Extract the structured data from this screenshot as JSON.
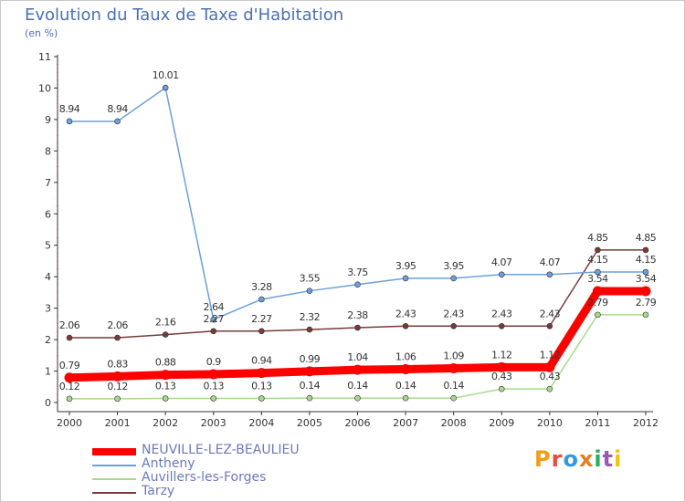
{
  "colors": {
    "title": "#4a6fb5",
    "axis": "#333333",
    "grid_dots": "#c03030"
  },
  "chart_data": {
    "type": "line",
    "title": "Evolution du Taux de Taxe d'Habitation",
    "subtitle": "(en %)",
    "xlabel": "",
    "ylabel": "",
    "ylim": [
      0,
      11
    ],
    "yticks": [
      "0",
      "1",
      "2",
      "3",
      "4",
      "5",
      "6",
      "7",
      "8",
      "9",
      "10",
      "11"
    ],
    "categories": [
      "2000",
      "2001",
      "2002",
      "2003",
      "2004",
      "2005",
      "2006",
      "2007",
      "2008",
      "2009",
      "2010",
      "2011",
      "2012"
    ],
    "legend_position": "bottom-left",
    "series": [
      {
        "name": "NEUVILLE-LEZ-BEAULIEU",
        "color": "#ff0000",
        "values": [
          0.79,
          0.83,
          0.88,
          0.9,
          0.94,
          0.99,
          1.04,
          1.06,
          1.09,
          1.12,
          1.12,
          3.54,
          3.54
        ],
        "labels": [
          "0.79",
          "0.83",
          "0.88",
          "0.9",
          "0.94",
          "0.99",
          "1.04",
          "1.06",
          "1.09",
          "1.12",
          "1.12",
          "3.54",
          "3.54"
        ]
      },
      {
        "name": "Antheny",
        "color": "#6ca0d8",
        "values": [
          8.94,
          8.94,
          10.01,
          2.64,
          3.28,
          3.55,
          3.75,
          3.95,
          3.95,
          4.07,
          4.07,
          4.15,
          4.15
        ],
        "labels": [
          "8.94",
          "8.94",
          "10.01",
          "2.64",
          "3.28",
          "3.55",
          "3.75",
          "3.95",
          "3.95",
          "4.07",
          "4.07",
          "4.15",
          "4.15"
        ]
      },
      {
        "name": "Auvillers-les-Forges",
        "color": "#a6d98a",
        "values": [
          0.12,
          0.12,
          0.13,
          0.13,
          0.13,
          0.14,
          0.14,
          0.14,
          0.14,
          0.43,
          0.43,
          2.79,
          2.79
        ],
        "labels": [
          "0.12",
          "0.12",
          "0.13",
          "0.13",
          "0.13",
          "0.14",
          "0.14",
          "0.14",
          "0.14",
          "0.43",
          "0.43",
          "2.79",
          "2.79"
        ]
      },
      {
        "name": "Tarzy",
        "color": "#7a3a3a",
        "values": [
          2.06,
          2.06,
          2.16,
          2.27,
          2.27,
          2.32,
          2.38,
          2.43,
          2.43,
          2.43,
          2.43,
          4.85,
          4.85
        ],
        "labels": [
          "2.06",
          "2.06",
          "2.16",
          "2.27",
          "2.27",
          "2.32",
          "2.38",
          "2.43",
          "2.43",
          "2.43",
          "2.43",
          "4.85",
          "4.85"
        ]
      }
    ]
  },
  "logo": {
    "text": "Proxiti",
    "colors": [
      "#f39c12",
      "#e74c3c",
      "#3498db",
      "#e67e22",
      "#27ae60",
      "#9b59b6",
      "#f1c40f"
    ]
  }
}
